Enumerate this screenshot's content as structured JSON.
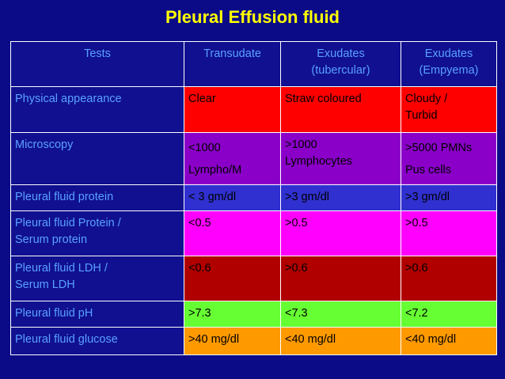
{
  "title": "Pleural Effusion fluid",
  "colors": {
    "background": "#0b0b88",
    "title": "#ffff00",
    "label_text": "#5aa0ff",
    "cell_text": "#000000"
  },
  "table": {
    "headers": [
      "Tests",
      "Transudate",
      "Exudates\n(tubercular)",
      "Exudates\n(Empyema)"
    ],
    "rows": [
      {
        "label": "Physical appearance",
        "color": "#ff0000",
        "cells": [
          "Clear",
          "Straw coloured",
          "Cloudy /\nTurbid"
        ]
      },
      {
        "label": "Microscopy",
        "color": "#8a00c8",
        "cells": [
          "<1000\nLympho/M",
          ">1000\nLymphocytes",
          ">5000 PMNs\nPus cells"
        ]
      },
      {
        "label": "Pleural fluid protein",
        "color": "#3030d0",
        "cells": [
          "< 3 gm/dl",
          ">3 gm/dl",
          ">3 gm/dl"
        ]
      },
      {
        "label": "Pleural fluid Protein /\nSerum protein",
        "color": "#ff00ff",
        "cells": [
          "<0.5",
          ">0.5",
          ">0.5"
        ]
      },
      {
        "label": "Pleural fluid LDH /\nSerum LDH",
        "color": "#b00000",
        "cells": [
          "<0.6",
          ">0.6",
          ">0.6"
        ]
      },
      {
        "label": "Pleural fluid pH",
        "color": "#66ff33",
        "cells": [
          ">7.3",
          "<7.3",
          "<7.2"
        ]
      },
      {
        "label": "Pleural fluid glucose",
        "color": "#ff9900",
        "cells": [
          ">40 mg/dl",
          "<40 mg/dl",
          "<40 mg/dl"
        ]
      }
    ]
  }
}
